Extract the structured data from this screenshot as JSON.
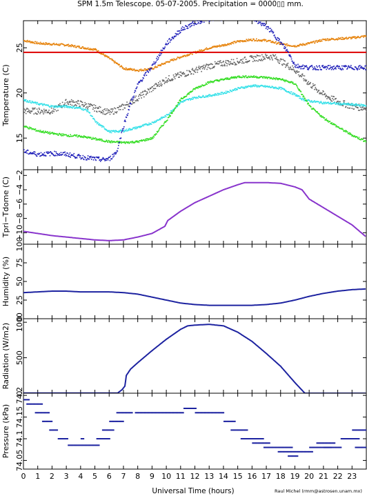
{
  "title": "SPM 1.5m Telescope. 05-07-2005. Precipitation = 0000▯▯ mm.",
  "xlabel": "Universal Time (hours)",
  "credit": "Raul Michel (rmm@astrosen.unam.mx)",
  "colors": {
    "orange": "#e6820a",
    "red": "#dd0000",
    "grey": "#606060",
    "cyan": "#33e0e8",
    "green": "#33dd22",
    "blue": "#1c1cb8",
    "purple": "#8833cc",
    "navy": "#1c22a0"
  },
  "chart_data": [
    {
      "type": "scatter",
      "ylabel": "Temperature (C)",
      "xlim": [
        0,
        24
      ],
      "ylim": [
        11.5,
        28
      ],
      "xticks": [
        "0",
        "1",
        "2",
        "3",
        "4",
        "5",
        "6",
        "7",
        "8",
        "9",
        "10",
        "11",
        "12",
        "13",
        "14",
        "15",
        "16",
        "17",
        "18",
        "19",
        "20",
        "21",
        "22",
        "23"
      ],
      "yticks": [
        15,
        20,
        25
      ],
      "series": [
        {
          "color": "orange",
          "x": [
            0,
            1,
            3,
            5,
            6,
            7,
            8,
            9,
            10,
            11,
            12,
            13,
            14,
            15,
            16,
            17,
            18,
            19,
            20,
            21,
            22,
            23,
            24
          ],
          "y": [
            25.8,
            25.5,
            25.3,
            24.8,
            23.8,
            22.7,
            22.5,
            22.7,
            23.4,
            24,
            24.5,
            25,
            25.3,
            25.7,
            25.9,
            25.8,
            25.4,
            25.2,
            25.5,
            25.9,
            26,
            26.1,
            26.3
          ]
        },
        {
          "color": "red",
          "x": [
            0,
            24
          ],
          "y": [
            24.5,
            24.5
          ]
        },
        {
          "color": "grey",
          "x": [
            0,
            2,
            3,
            4,
            5,
            6,
            7,
            8,
            9,
            10,
            11,
            12,
            13,
            14,
            15,
            16,
            17,
            17.5,
            18,
            19,
            20,
            21,
            22,
            23,
            24
          ],
          "y": [
            18,
            18,
            19,
            18.8,
            18.3,
            17.8,
            18.5,
            19.5,
            20.5,
            21.5,
            22,
            22.5,
            23,
            23.3,
            23.5,
            23.8,
            24,
            24,
            23.5,
            22.5,
            21,
            19.8,
            19,
            18.5,
            18.3
          ]
        },
        {
          "color": "cyan",
          "x": [
            0,
            1,
            2,
            3,
            4,
            4.5,
            5,
            6,
            7,
            8,
            9,
            10,
            11,
            12,
            13,
            14,
            15,
            16,
            17,
            18,
            19,
            19.5,
            20,
            21,
            22,
            23,
            24
          ],
          "y": [
            19.2,
            18.8,
            18.5,
            18.5,
            18.3,
            18,
            16.8,
            15.7,
            15.8,
            16.2,
            16.7,
            17.5,
            19,
            19.5,
            19.7,
            20,
            20.5,
            20.8,
            20.7,
            20.5,
            19.8,
            19.3,
            19.1,
            18.9,
            18.8,
            18.7,
            18.6
          ]
        },
        {
          "color": "green",
          "x": [
            0,
            1,
            2,
            3,
            4,
            5,
            6,
            7,
            8,
            9,
            10,
            11,
            12,
            13,
            14,
            15,
            16,
            17,
            18,
            19,
            20,
            21,
            22,
            23,
            24
          ],
          "y": [
            16.3,
            15.8,
            15.5,
            15.3,
            15.2,
            14.9,
            14.6,
            14.5,
            14.6,
            15,
            17,
            19.3,
            20.5,
            21.2,
            21.5,
            21.8,
            21.8,
            21.7,
            21.5,
            21,
            18.5,
            17.2,
            16.2,
            15.3,
            14.6
          ]
        },
        {
          "color": "blue",
          "x": [
            0,
            1,
            2,
            3,
            4,
            5,
            5.5,
            6,
            6.5,
            7,
            7.5,
            8,
            9,
            10,
            11,
            12,
            13,
            14,
            15,
            16,
            17,
            17.5,
            18,
            18.5,
            19,
            20,
            21,
            22,
            23,
            24
          ],
          "y": [
            13.5,
            13.2,
            13.3,
            13.2,
            12.9,
            12.7,
            12.6,
            12.7,
            13.5,
            16.5,
            19,
            21,
            23,
            25.5,
            27,
            27.8,
            28.2,
            28.3,
            28.3,
            28.3,
            27.3,
            26.5,
            25.5,
            24.5,
            23,
            22.8,
            22.8,
            22.8,
            22.8,
            22.8
          ]
        }
      ]
    },
    {
      "type": "line",
      "ylabel": "Tpri−Tdome (C)",
      "xlim": [
        0,
        24
      ],
      "ylim": [
        -11.6,
        -1.2
      ],
      "yticks": [
        "−2",
        "−4",
        "−6",
        "−8",
        "−10"
      ],
      "ytick_values": [
        -2,
        -4,
        -6,
        -8,
        -10
      ],
      "series": [
        {
          "color": "purple",
          "x": [
            0,
            1,
            2,
            3,
            4,
            5,
            6,
            7,
            8,
            9,
            9.9,
            10.1,
            11,
            12,
            13,
            14,
            15,
            15.5,
            16,
            17,
            18,
            19,
            19.5,
            20,
            21,
            22,
            23,
            24
          ],
          "y": [
            -9.8,
            -10.1,
            -10.4,
            -10.6,
            -10.8,
            -11,
            -11.1,
            -11,
            -10.6,
            -10.1,
            -9.1,
            -8.3,
            -7,
            -5.8,
            -4.9,
            -4,
            -3.3,
            -3,
            -3,
            -3,
            -3.1,
            -3.6,
            -4,
            -5.3,
            -6.5,
            -7.7,
            -8.9,
            -10.6
          ]
        }
      ]
    },
    {
      "type": "line",
      "ylabel": "Humidity (%)",
      "xlim": [
        0,
        24
      ],
      "ylim": [
        0,
        100
      ],
      "yticks": [
        "0",
        "25",
        "50",
        "75",
        "100"
      ],
      "ytick_values": [
        0,
        25,
        50,
        75,
        100
      ],
      "series": [
        {
          "color": "navy",
          "x": [
            0,
            1,
            2,
            3,
            4,
            5,
            6,
            7,
            8,
            9,
            10,
            11,
            12,
            13,
            14,
            15,
            16,
            17,
            18,
            19,
            20,
            21,
            22,
            23,
            24
          ],
          "y": [
            35,
            36,
            37,
            37,
            36,
            36,
            36,
            35,
            33,
            29,
            25,
            21,
            19,
            18,
            18,
            18,
            18,
            19,
            21,
            25,
            30,
            34,
            37,
            39,
            40
          ]
        }
      ]
    },
    {
      "type": "line",
      "ylabel": "Radiation (W/m2)",
      "xlim": [
        0,
        24
      ],
      "ylim": [
        0,
        1050
      ],
      "yticks": [
        "0",
        "500",
        "1000"
      ],
      "ytick_values": [
        0,
        500,
        1000
      ],
      "series": [
        {
          "color": "navy",
          "x": [
            0,
            1,
            2,
            3,
            4,
            5,
            6,
            6.6,
            6.9,
            7.1,
            7.2,
            7.5,
            8,
            9,
            10,
            11,
            11.5,
            12,
            13,
            14,
            15,
            16,
            17,
            18,
            19,
            19.7,
            20,
            21,
            22,
            23,
            24
          ],
          "y": [
            3,
            3,
            3,
            3,
            3,
            3,
            3,
            3,
            50,
            100,
            250,
            340,
            430,
            600,
            760,
            900,
            950,
            960,
            970,
            950,
            860,
            730,
            560,
            380,
            150,
            0,
            0,
            0,
            0,
            0,
            0
          ]
        }
      ]
    },
    {
      "type": "scatter",
      "ylabel": "Pressure (kPa)",
      "xlim": [
        0,
        24
      ],
      "ylim": [
        74.03,
        74.205
      ],
      "yticks": [
        "74.05",
        "74.1",
        "74.15",
        "74.2"
      ],
      "ytick_values": [
        74.05,
        74.1,
        74.15,
        74.2
      ],
      "series": [
        {
          "color": "navy",
          "segments": [
            [
              0,
              0.4,
              74.19
            ],
            [
              0.2,
              1.3,
              74.18
            ],
            [
              0.8,
              1.8,
              74.16
            ],
            [
              1.3,
              2.0,
              74.14
            ],
            [
              1.8,
              2.4,
              74.12
            ],
            [
              2.4,
              3.1,
              74.1
            ],
            [
              3.1,
              5.3,
              74.085
            ],
            [
              4.0,
              4.2,
              74.1
            ],
            [
              5.1,
              6.0,
              74.1
            ],
            [
              5.5,
              6.3,
              74.12
            ],
            [
              6.0,
              7.0,
              74.14
            ],
            [
              6.5,
              7.6,
              74.16
            ],
            [
              7.8,
              11.2,
              74.16
            ],
            [
              11.2,
              12.1,
              74.17
            ],
            [
              12.0,
              14.0,
              74.16
            ],
            [
              14.0,
              14.8,
              74.14
            ],
            [
              14.5,
              15.7,
              74.12
            ],
            [
              15.2,
              16.8,
              74.1
            ],
            [
              16.0,
              17.2,
              74.09
            ],
            [
              16.8,
              18.8,
              74.08
            ],
            [
              17.8,
              20.2,
              74.07
            ],
            [
              18.5,
              19.2,
              74.06
            ],
            [
              20.0,
              21.5,
              74.08
            ],
            [
              20.5,
              21.8,
              74.09
            ],
            [
              21.0,
              22.2,
              74.08
            ],
            [
              22.2,
              23.5,
              74.1
            ],
            [
              23.0,
              24.0,
              74.12
            ],
            [
              23.2,
              24.0,
              74.08
            ]
          ]
        }
      ]
    }
  ]
}
